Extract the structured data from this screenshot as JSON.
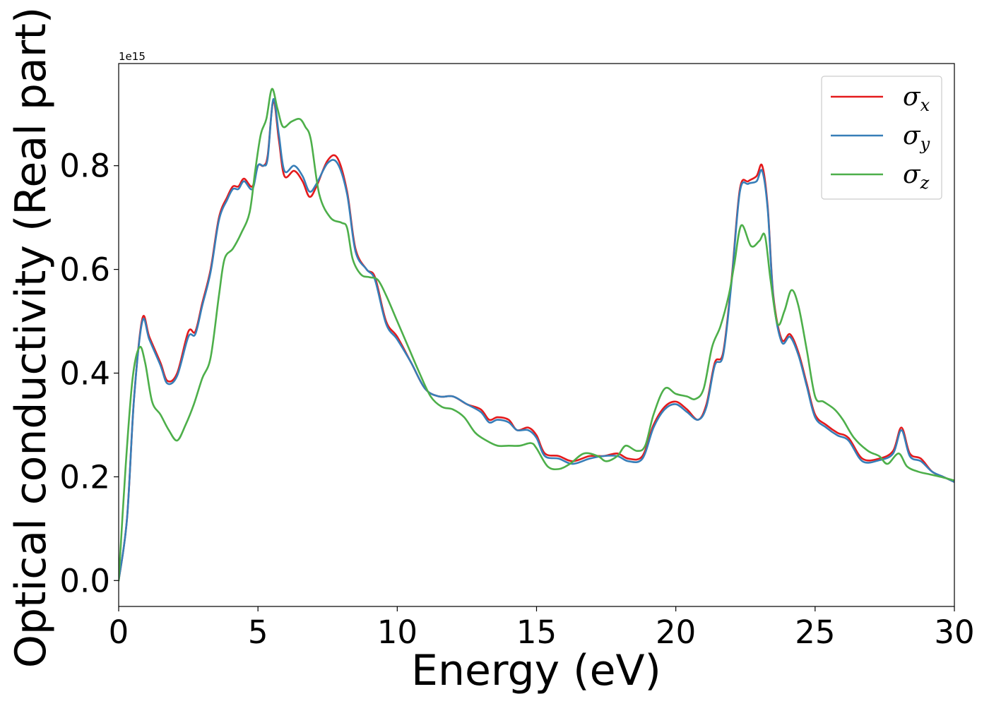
{
  "chart_data": {
    "type": "line",
    "xlabel": "Energy (eV)",
    "ylabel": "Optical conductivity (Real part)",
    "y_offset_label": "1e15",
    "xlim": [
      0,
      30
    ],
    "ylim": [
      -0.05,
      0.997
    ],
    "x_ticks": [
      0,
      5,
      10,
      15,
      20,
      25,
      30
    ],
    "x_tick_labels": [
      "0",
      "5",
      "10",
      "15",
      "20",
      "25",
      "30"
    ],
    "y_ticks": [
      0.0,
      0.2,
      0.4,
      0.6,
      0.8
    ],
    "y_tick_labels": [
      "0.0",
      "0.2",
      "0.4",
      "0.6",
      "0.8"
    ],
    "grid": false,
    "legend": {
      "placement": "top-right"
    },
    "series": [
      {
        "name": "σx",
        "symbol": "σ",
        "subscript": "x",
        "color": "#e41a1c",
        "points": [
          [
            0,
            0
          ],
          [
            0.3,
            0.12
          ],
          [
            0.55,
            0.35
          ],
          [
            0.85,
            0.505
          ],
          [
            1.1,
            0.47
          ],
          [
            1.5,
            0.42
          ],
          [
            1.75,
            0.385
          ],
          [
            2.1,
            0.4
          ],
          [
            2.5,
            0.48
          ],
          [
            2.75,
            0.48
          ],
          [
            3.0,
            0.535
          ],
          [
            3.3,
            0.6
          ],
          [
            3.6,
            0.7
          ],
          [
            3.9,
            0.74
          ],
          [
            4.1,
            0.76
          ],
          [
            4.3,
            0.76
          ],
          [
            4.5,
            0.775
          ],
          [
            4.8,
            0.76
          ],
          [
            5.0,
            0.8
          ],
          [
            5.2,
            0.8
          ],
          [
            5.35,
            0.82
          ],
          [
            5.55,
            0.925
          ],
          [
            5.75,
            0.85
          ],
          [
            5.95,
            0.78
          ],
          [
            6.3,
            0.79
          ],
          [
            6.6,
            0.77
          ],
          [
            6.85,
            0.74
          ],
          [
            7.1,
            0.76
          ],
          [
            7.5,
            0.81
          ],
          [
            7.85,
            0.815
          ],
          [
            8.2,
            0.75
          ],
          [
            8.5,
            0.64
          ],
          [
            8.9,
            0.6
          ],
          [
            9.2,
            0.585
          ],
          [
            9.6,
            0.5
          ],
          [
            10.0,
            0.47
          ],
          [
            10.5,
            0.42
          ],
          [
            11.0,
            0.37
          ],
          [
            11.5,
            0.355
          ],
          [
            12.0,
            0.355
          ],
          [
            12.5,
            0.34
          ],
          [
            13.0,
            0.33
          ],
          [
            13.3,
            0.31
          ],
          [
            13.6,
            0.315
          ],
          [
            14.0,
            0.31
          ],
          [
            14.3,
            0.29
          ],
          [
            14.7,
            0.295
          ],
          [
            15.0,
            0.28
          ],
          [
            15.3,
            0.245
          ],
          [
            15.8,
            0.24
          ],
          [
            16.3,
            0.23
          ],
          [
            16.9,
            0.24
          ],
          [
            17.4,
            0.24
          ],
          [
            17.9,
            0.245
          ],
          [
            18.3,
            0.235
          ],
          [
            18.8,
            0.24
          ],
          [
            19.2,
            0.3
          ],
          [
            19.6,
            0.335
          ],
          [
            20.0,
            0.345
          ],
          [
            20.4,
            0.33
          ],
          [
            20.8,
            0.31
          ],
          [
            21.1,
            0.34
          ],
          [
            21.4,
            0.42
          ],
          [
            21.7,
            0.44
          ],
          [
            22.0,
            0.58
          ],
          [
            22.3,
            0.755
          ],
          [
            22.6,
            0.77
          ],
          [
            22.9,
            0.78
          ],
          [
            23.1,
            0.8
          ],
          [
            23.3,
            0.72
          ],
          [
            23.5,
            0.55
          ],
          [
            23.8,
            0.465
          ],
          [
            24.1,
            0.475
          ],
          [
            24.4,
            0.44
          ],
          [
            24.7,
            0.38
          ],
          [
            25.0,
            0.32
          ],
          [
            25.4,
            0.3
          ],
          [
            25.8,
            0.285
          ],
          [
            26.2,
            0.275
          ],
          [
            26.7,
            0.235
          ],
          [
            27.3,
            0.235
          ],
          [
            27.8,
            0.25
          ],
          [
            28.1,
            0.295
          ],
          [
            28.4,
            0.245
          ],
          [
            28.8,
            0.235
          ],
          [
            29.2,
            0.21
          ],
          [
            29.6,
            0.2
          ],
          [
            30.0,
            0.19
          ]
        ]
      },
      {
        "name": "σy",
        "symbol": "σ",
        "subscript": "y",
        "color": "#377eb8",
        "points": [
          [
            0,
            0
          ],
          [
            0.3,
            0.12
          ],
          [
            0.55,
            0.35
          ],
          [
            0.85,
            0.5
          ],
          [
            1.1,
            0.465
          ],
          [
            1.5,
            0.415
          ],
          [
            1.75,
            0.38
          ],
          [
            2.1,
            0.395
          ],
          [
            2.5,
            0.47
          ],
          [
            2.75,
            0.475
          ],
          [
            3.0,
            0.53
          ],
          [
            3.3,
            0.595
          ],
          [
            3.6,
            0.695
          ],
          [
            3.9,
            0.735
          ],
          [
            4.1,
            0.755
          ],
          [
            4.3,
            0.755
          ],
          [
            4.5,
            0.77
          ],
          [
            4.8,
            0.755
          ],
          [
            5.0,
            0.8
          ],
          [
            5.2,
            0.8
          ],
          [
            5.35,
            0.815
          ],
          [
            5.55,
            0.928
          ],
          [
            5.75,
            0.86
          ],
          [
            5.95,
            0.79
          ],
          [
            6.3,
            0.8
          ],
          [
            6.6,
            0.78
          ],
          [
            6.85,
            0.75
          ],
          [
            7.1,
            0.765
          ],
          [
            7.5,
            0.805
          ],
          [
            7.85,
            0.805
          ],
          [
            8.2,
            0.745
          ],
          [
            8.5,
            0.635
          ],
          [
            8.9,
            0.6
          ],
          [
            9.2,
            0.58
          ],
          [
            9.6,
            0.495
          ],
          [
            10.0,
            0.465
          ],
          [
            10.5,
            0.42
          ],
          [
            11.0,
            0.37
          ],
          [
            11.5,
            0.355
          ],
          [
            12.0,
            0.355
          ],
          [
            12.5,
            0.34
          ],
          [
            13.0,
            0.325
          ],
          [
            13.3,
            0.305
          ],
          [
            13.6,
            0.31
          ],
          [
            14.0,
            0.305
          ],
          [
            14.3,
            0.29
          ],
          [
            14.7,
            0.29
          ],
          [
            15.0,
            0.275
          ],
          [
            15.3,
            0.24
          ],
          [
            15.8,
            0.235
          ],
          [
            16.3,
            0.225
          ],
          [
            16.9,
            0.235
          ],
          [
            17.4,
            0.24
          ],
          [
            17.9,
            0.24
          ],
          [
            18.3,
            0.23
          ],
          [
            18.8,
            0.235
          ],
          [
            19.2,
            0.295
          ],
          [
            19.6,
            0.33
          ],
          [
            20.0,
            0.34
          ],
          [
            20.4,
            0.325
          ],
          [
            20.8,
            0.31
          ],
          [
            21.1,
            0.335
          ],
          [
            21.4,
            0.415
          ],
          [
            21.7,
            0.435
          ],
          [
            22.0,
            0.575
          ],
          [
            22.3,
            0.75
          ],
          [
            22.6,
            0.765
          ],
          [
            22.9,
            0.77
          ],
          [
            23.1,
            0.79
          ],
          [
            23.3,
            0.715
          ],
          [
            23.5,
            0.545
          ],
          [
            23.8,
            0.46
          ],
          [
            24.1,
            0.47
          ],
          [
            24.4,
            0.435
          ],
          [
            24.7,
            0.375
          ],
          [
            25.0,
            0.315
          ],
          [
            25.4,
            0.295
          ],
          [
            25.8,
            0.28
          ],
          [
            26.2,
            0.27
          ],
          [
            26.7,
            0.23
          ],
          [
            27.3,
            0.232
          ],
          [
            27.8,
            0.245
          ],
          [
            28.1,
            0.29
          ],
          [
            28.4,
            0.24
          ],
          [
            28.8,
            0.23
          ],
          [
            29.2,
            0.21
          ],
          [
            29.6,
            0.2
          ],
          [
            30.0,
            0.19
          ]
        ]
      },
      {
        "name": "σz",
        "symbol": "σ",
        "subscript": "z",
        "color": "#4daf4a",
        "points": [
          [
            0,
            0
          ],
          [
            0.25,
            0.22
          ],
          [
            0.5,
            0.39
          ],
          [
            0.75,
            0.45
          ],
          [
            0.95,
            0.42
          ],
          [
            1.2,
            0.345
          ],
          [
            1.5,
            0.32
          ],
          [
            1.8,
            0.29
          ],
          [
            2.1,
            0.27
          ],
          [
            2.4,
            0.3
          ],
          [
            2.7,
            0.34
          ],
          [
            3.0,
            0.39
          ],
          [
            3.3,
            0.43
          ],
          [
            3.6,
            0.55
          ],
          [
            3.8,
            0.62
          ],
          [
            4.1,
            0.64
          ],
          [
            4.4,
            0.67
          ],
          [
            4.7,
            0.71
          ],
          [
            4.9,
            0.79
          ],
          [
            5.1,
            0.86
          ],
          [
            5.3,
            0.89
          ],
          [
            5.5,
            0.948
          ],
          [
            5.7,
            0.91
          ],
          [
            5.9,
            0.875
          ],
          [
            6.2,
            0.885
          ],
          [
            6.5,
            0.89
          ],
          [
            6.7,
            0.875
          ],
          [
            6.9,
            0.85
          ],
          [
            7.2,
            0.745
          ],
          [
            7.6,
            0.7
          ],
          [
            8.0,
            0.69
          ],
          [
            8.2,
            0.68
          ],
          [
            8.4,
            0.62
          ],
          [
            8.7,
            0.59
          ],
          [
            9.0,
            0.585
          ],
          [
            9.3,
            0.58
          ],
          [
            9.6,
            0.55
          ],
          [
            10.0,
            0.5
          ],
          [
            10.4,
            0.45
          ],
          [
            10.8,
            0.4
          ],
          [
            11.2,
            0.355
          ],
          [
            11.6,
            0.335
          ],
          [
            12.0,
            0.33
          ],
          [
            12.4,
            0.315
          ],
          [
            12.8,
            0.285
          ],
          [
            13.2,
            0.27
          ],
          [
            13.6,
            0.26
          ],
          [
            14.0,
            0.26
          ],
          [
            14.4,
            0.26
          ],
          [
            14.8,
            0.265
          ],
          [
            15.0,
            0.255
          ],
          [
            15.4,
            0.22
          ],
          [
            15.8,
            0.215
          ],
          [
            16.2,
            0.225
          ],
          [
            16.7,
            0.245
          ],
          [
            17.2,
            0.24
          ],
          [
            17.5,
            0.23
          ],
          [
            17.9,
            0.24
          ],
          [
            18.2,
            0.26
          ],
          [
            18.6,
            0.25
          ],
          [
            18.9,
            0.26
          ],
          [
            19.2,
            0.32
          ],
          [
            19.6,
            0.37
          ],
          [
            20.0,
            0.36
          ],
          [
            20.4,
            0.355
          ],
          [
            20.7,
            0.35
          ],
          [
            21.0,
            0.37
          ],
          [
            21.3,
            0.45
          ],
          [
            21.6,
            0.49
          ],
          [
            21.9,
            0.55
          ],
          [
            22.1,
            0.61
          ],
          [
            22.35,
            0.685
          ],
          [
            22.7,
            0.645
          ],
          [
            23.0,
            0.655
          ],
          [
            23.2,
            0.665
          ],
          [
            23.4,
            0.58
          ],
          [
            23.65,
            0.495
          ],
          [
            23.9,
            0.52
          ],
          [
            24.15,
            0.56
          ],
          [
            24.4,
            0.53
          ],
          [
            24.7,
            0.445
          ],
          [
            25.0,
            0.355
          ],
          [
            25.3,
            0.345
          ],
          [
            25.7,
            0.33
          ],
          [
            26.0,
            0.31
          ],
          [
            26.4,
            0.275
          ],
          [
            26.9,
            0.25
          ],
          [
            27.3,
            0.24
          ],
          [
            27.6,
            0.225
          ],
          [
            28.0,
            0.245
          ],
          [
            28.3,
            0.22
          ],
          [
            28.7,
            0.21
          ],
          [
            29.1,
            0.205
          ],
          [
            29.5,
            0.2
          ],
          [
            30.0,
            0.193
          ]
        ]
      }
    ]
  }
}
